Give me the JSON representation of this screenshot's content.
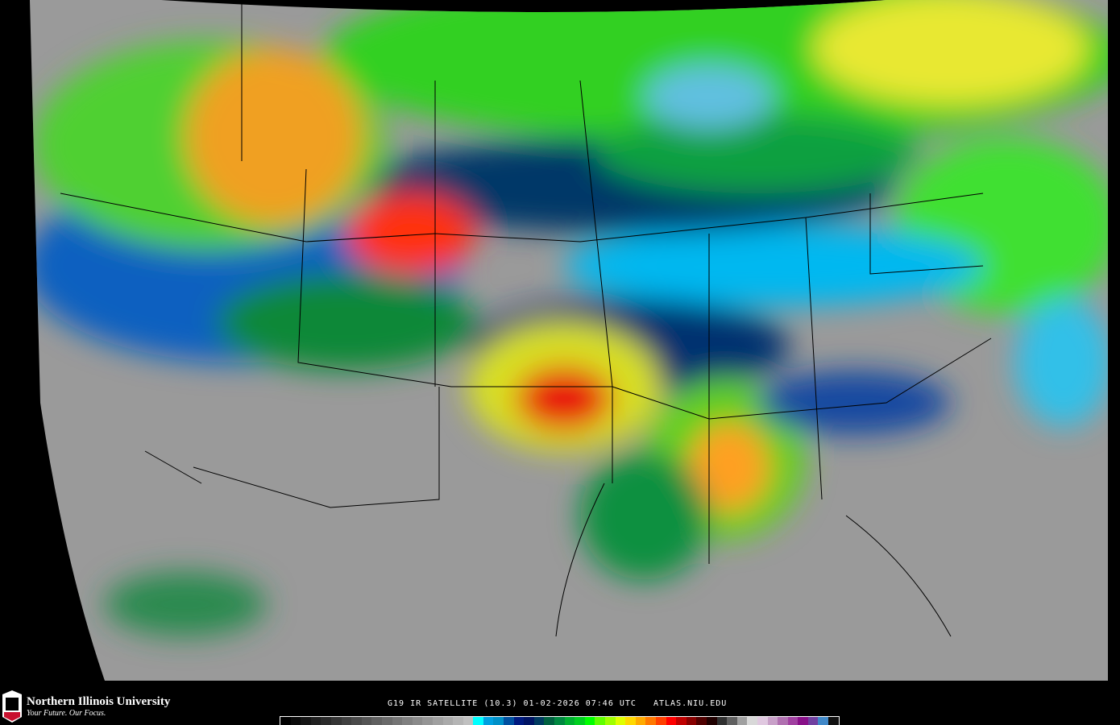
{
  "branding": {
    "university": "Northern Illinois University",
    "tagline": "Your Future. Our Focus.",
    "logo_text": "NIU"
  },
  "caption": {
    "product": "G19 IR SATELLITE (10.3)",
    "datetime": "01-02-2026 07:46 UTC",
    "site": "ATLAS.NIU.EDU"
  },
  "map": {
    "projection_background": "#000000",
    "border_color": "#000000"
  },
  "colorbar": {
    "colors": [
      "#000000",
      "#0a0a0a",
      "#151515",
      "#202020",
      "#2a2a2a",
      "#353535",
      "#404040",
      "#4a4a4a",
      "#555555",
      "#606060",
      "#6a6a6a",
      "#757575",
      "#808080",
      "#8a8a8a",
      "#959595",
      "#a0a0a0",
      "#aaaaaa",
      "#b5b5b5",
      "#c0c0c0",
      "#00ffff",
      "#00a0e0",
      "#0090c8",
      "#0050a0",
      "#001a80",
      "#001464",
      "#003a60",
      "#006040",
      "#008840",
      "#00b030",
      "#00d020",
      "#00ff00",
      "#60ff00",
      "#a0ff00",
      "#e0ff00",
      "#ffd800",
      "#ffaa00",
      "#ff7800",
      "#ff4000",
      "#ff0000",
      "#c00000",
      "#880000",
      "#500000",
      "#200000",
      "#303030",
      "#606060",
      "#a0a0a0",
      "#d8d8d8",
      "#e0c8e0",
      "#c8a0c8",
      "#b070b0",
      "#a040a0",
      "#881088",
      "#7040a0",
      "#4088c8",
      "#101010"
    ]
  }
}
